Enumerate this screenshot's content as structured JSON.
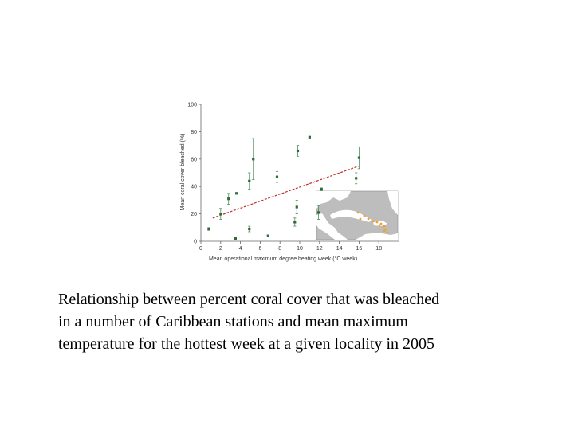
{
  "caption": {
    "lines": [
      "Relationship between percent coral cover that was bleached",
      "in a number of Caribbean stations and mean maximum",
      "temperature for the hottest week at a given locality in 2005"
    ]
  },
  "colors": {
    "point": "#2f6b3a",
    "error_bar": "#4f8f5a",
    "trend_line": "#c0302a",
    "map_sea": "#bdbdbd",
    "map_land": "#ffffff",
    "map_stations": "#f2a127"
  },
  "chart_data": {
    "type": "scatter",
    "xlabel": "Mean operational maximum degree heating week (°C week)",
    "ylabel": "Mean coral cover bleached (%)",
    "xlim": [
      0,
      20
    ],
    "ylim": [
      0,
      100
    ],
    "xticks": [
      "0",
      "2",
      "4",
      "6",
      "8",
      "10",
      "12",
      "14",
      "16",
      "18"
    ],
    "yticks": [
      "0",
      "20",
      "40",
      "60",
      "80",
      "100"
    ],
    "grid": false,
    "legend": "none",
    "points": [
      {
        "x": 0.8,
        "y": 9,
        "err": 1
      },
      {
        "x": 2.0,
        "y": 20,
        "err": 4
      },
      {
        "x": 2.8,
        "y": 31,
        "err": 4
      },
      {
        "x": 3.5,
        "y": 2,
        "err": 0
      },
      {
        "x": 3.6,
        "y": 35,
        "err": 0
      },
      {
        "x": 4.9,
        "y": 9,
        "err": 2
      },
      {
        "x": 4.9,
        "y": 44,
        "err": 6
      },
      {
        "x": 5.3,
        "y": 60,
        "err": 15
      },
      {
        "x": 6.8,
        "y": 4,
        "err": 0
      },
      {
        "x": 7.7,
        "y": 47,
        "err": 4
      },
      {
        "x": 9.5,
        "y": 14,
        "err": 3
      },
      {
        "x": 9.7,
        "y": 25,
        "err": 5
      },
      {
        "x": 9.8,
        "y": 66,
        "err": 4
      },
      {
        "x": 11.0,
        "y": 76,
        "err": 0
      },
      {
        "x": 11.9,
        "y": 21,
        "err": 5
      },
      {
        "x": 12.2,
        "y": 38,
        "err": 1
      },
      {
        "x": 15.7,
        "y": 46,
        "err": 4
      },
      {
        "x": 16.0,
        "y": 61,
        "err": 8
      }
    ],
    "trend_line": {
      "x": [
        1.2,
        16.0
      ],
      "y": [
        17,
        55
      ]
    }
  }
}
